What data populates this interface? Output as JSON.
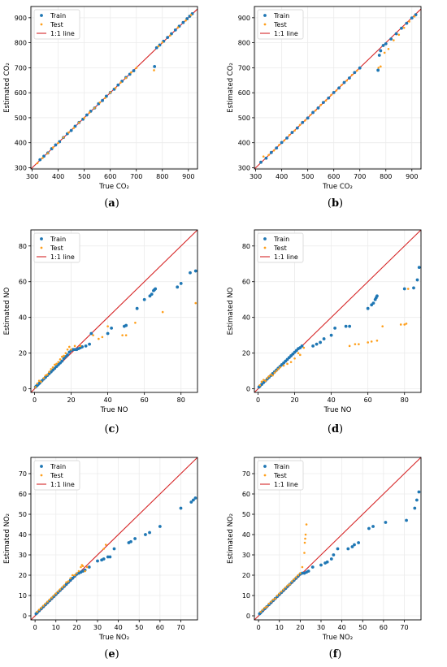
{
  "legend_labels": {
    "train": "Train",
    "test": "Test",
    "line": "1:1 line"
  },
  "colors": {
    "train": "#1f77b4",
    "test": "#ff9f1a",
    "line": "#d62728",
    "grid": "#ebebeb",
    "axis": "#000000"
  },
  "chart_data": [
    {
      "type": "scatter",
      "panel": "a",
      "xlabel": "True CO₂",
      "ylabel": "Estimated CO₂",
      "xlim": [
        295,
        935
      ],
      "ylim": [
        295,
        945
      ],
      "xticks": [
        300,
        400,
        500,
        600,
        700,
        800,
        900
      ],
      "yticks": [
        300,
        400,
        500,
        600,
        700,
        800,
        900
      ],
      "grid": true,
      "legend": "top-left",
      "series": [
        {
          "name": "Train",
          "x": [
            330,
            345,
            360,
            375,
            390,
            405,
            420,
            435,
            450,
            465,
            480,
            495,
            510,
            525,
            540,
            555,
            570,
            585,
            600,
            615,
            630,
            645,
            660,
            675,
            690,
            770,
            778,
            790,
            805,
            820,
            835,
            850,
            865,
            880,
            895,
            905,
            915
          ],
          "y": [
            332,
            346,
            359,
            376,
            391,
            404,
            421,
            436,
            449,
            466,
            481,
            494,
            511,
            526,
            539,
            556,
            569,
            586,
            601,
            614,
            631,
            646,
            661,
            674,
            688,
            705,
            780,
            791,
            806,
            821,
            836,
            851,
            866,
            881,
            896,
            906,
            916
          ]
        },
        {
          "name": "Test",
          "x": [
            320,
            340,
            360,
            380,
            400,
            420,
            440,
            460,
            480,
            500,
            520,
            540,
            560,
            580,
            600,
            620,
            640,
            660,
            680,
            700,
            768,
            785,
            800,
            830,
            860,
            890,
            910
          ],
          "y": [
            318,
            339,
            358,
            381,
            399,
            421,
            441,
            459,
            481,
            499,
            521,
            539,
            561,
            579,
            601,
            619,
            641,
            659,
            681,
            699,
            690,
            786,
            801,
            829,
            861,
            889,
            911
          ]
        }
      ]
    },
    {
      "type": "scatter",
      "panel": "b",
      "xlabel": "True CO₂",
      "ylabel": "Estimated CO₂",
      "xlim": [
        295,
        935
      ],
      "ylim": [
        295,
        945
      ],
      "xticks": [
        300,
        400,
        500,
        600,
        700,
        800,
        900
      ],
      "yticks": [
        300,
        400,
        500,
        600,
        700,
        800,
        900
      ],
      "grid": true,
      "legend": "top-left",
      "series": [
        {
          "name": "Train",
          "x": [
            320,
            340,
            360,
            380,
            400,
            420,
            440,
            460,
            480,
            500,
            520,
            540,
            560,
            580,
            600,
            620,
            640,
            660,
            680,
            700,
            770,
            775,
            780,
            790,
            800,
            820,
            840,
            860,
            880,
            900,
            915
          ],
          "y": [
            322,
            338,
            361,
            379,
            401,
            419,
            441,
            459,
            481,
            499,
            521,
            539,
            561,
            579,
            601,
            619,
            641,
            659,
            681,
            699,
            690,
            750,
            768,
            789,
            796,
            815,
            836,
            858,
            878,
            899,
            912
          ]
        },
        {
          "name": "Test",
          "x": [
            330,
            350,
            370,
            390,
            410,
            430,
            450,
            470,
            490,
            510,
            530,
            550,
            570,
            590,
            610,
            630,
            650,
            670,
            690,
            772,
            780,
            795,
            810,
            830,
            850,
            870,
            890,
            910
          ],
          "y": [
            345,
            351,
            369,
            391,
            409,
            431,
            449,
            471,
            489,
            511,
            529,
            551,
            569,
            591,
            609,
            631,
            649,
            671,
            689,
            700,
            705,
            760,
            775,
            810,
            832,
            860,
            885,
            905
          ]
        }
      ]
    },
    {
      "type": "scatter",
      "panel": "c",
      "xlabel": "True NO",
      "ylabel": "Estimated NO",
      "xlim": [
        -2,
        89
      ],
      "ylim": [
        -2,
        89
      ],
      "xticks": [
        0,
        20,
        40,
        60,
        80
      ],
      "yticks": [
        0,
        20,
        40,
        60,
        80
      ],
      "grid": true,
      "legend": "top-left",
      "series": [
        {
          "name": "Train",
          "x": [
            0.5,
            1,
            1.5,
            2,
            2.5,
            3,
            4,
            5,
            6,
            7,
            8,
            9,
            10,
            11,
            12,
            13,
            14,
            15,
            16,
            17,
            18,
            19,
            20,
            21,
            22,
            23,
            24,
            25,
            26,
            28,
            30,
            31,
            40,
            42,
            49,
            50,
            56,
            60,
            63,
            64,
            65,
            65.5,
            66,
            78,
            80,
            85,
            88
          ],
          "y": [
            1,
            1.5,
            2,
            2.5,
            3,
            3.5,
            4.5,
            5.5,
            6.5,
            7.5,
            8.5,
            9.5,
            10.5,
            11.5,
            12.5,
            13.5,
            14.5,
            15.5,
            17,
            18,
            19,
            20.5,
            21.5,
            22,
            22,
            22,
            22.5,
            23,
            23.5,
            24,
            25,
            31,
            31,
            34,
            35,
            35.5,
            45,
            50,
            52,
            53,
            55,
            55.5,
            56,
            57,
            59,
            65,
            66
          ]
        },
        {
          "name": "Test",
          "x": [
            0.5,
            1.5,
            2.5,
            3.5,
            5,
            6,
            7,
            8,
            9,
            10,
            11,
            12,
            13,
            14,
            15,
            16,
            17,
            18,
            19,
            20,
            22,
            25,
            32,
            35,
            37,
            40,
            48,
            50,
            55,
            70,
            88
          ],
          "y": [
            1,
            3,
            4.5,
            4,
            6,
            7.5,
            8,
            9.5,
            11,
            12,
            13.5,
            14,
            15,
            16.5,
            18,
            18.5,
            20,
            22,
            23.5,
            22,
            24,
            24,
            30,
            28,
            29,
            35,
            30,
            30,
            37,
            43,
            48
          ]
        }
      ]
    },
    {
      "type": "scatter",
      "panel": "d",
      "xlabel": "True NO",
      "ylabel": "Estimated NO",
      "xlim": [
        -2,
        89
      ],
      "ylim": [
        -2,
        89
      ],
      "xticks": [
        0,
        20,
        40,
        60,
        80
      ],
      "yticks": [
        0,
        20,
        40,
        60,
        80
      ],
      "grid": true,
      "legend": "top-left",
      "series": [
        {
          "name": "Train",
          "x": [
            0.5,
            1,
            2,
            3,
            4,
            5,
            6,
            7,
            8,
            9,
            10,
            11,
            12,
            13,
            14,
            15,
            16,
            17,
            18,
            19,
            20,
            21,
            22,
            23,
            24,
            30,
            32,
            34,
            36,
            40,
            42,
            48,
            50,
            60,
            62,
            63,
            64,
            64.5,
            65,
            80,
            85,
            87,
            88
          ],
          "y": [
            1,
            1.5,
            2.5,
            3.5,
            4.5,
            5.5,
            6.5,
            7.5,
            8.5,
            9.5,
            10.5,
            11.5,
            12.5,
            13.5,
            14.5,
            15.5,
            16.5,
            17.5,
            18.5,
            19.5,
            20.5,
            21.5,
            22.5,
            23,
            24,
            24,
            25,
            26,
            28,
            30,
            34,
            35,
            35,
            45,
            47,
            48,
            50,
            51,
            52,
            56,
            56.5,
            61,
            68
          ]
        },
        {
          "name": "Test",
          "x": [
            1,
            2,
            3,
            4,
            5,
            6,
            7,
            8,
            9,
            10,
            11,
            12,
            14,
            16,
            18,
            20,
            22,
            23,
            25,
            50,
            53,
            55,
            60,
            62,
            65,
            68,
            78,
            80,
            81,
            82
          ],
          "y": [
            2,
            4,
            5,
            4.5,
            6,
            7,
            8,
            7.5,
            9,
            10,
            11,
            12,
            13,
            14,
            15,
            17,
            20,
            19,
            23,
            24,
            25,
            25,
            26,
            26.5,
            27,
            35,
            36,
            36,
            36.5,
            56
          ]
        }
      ]
    },
    {
      "type": "scatter",
      "panel": "e",
      "xlabel": "True NO₂",
      "ylabel": "Estimated NO₂",
      "xlim": [
        -2,
        78
      ],
      "ylim": [
        -2,
        78
      ],
      "xticks": [
        0,
        10,
        20,
        30,
        40,
        50,
        60,
        70
      ],
      "yticks": [
        0,
        10,
        20,
        30,
        40,
        50,
        60,
        70
      ],
      "grid": true,
      "legend": "top-left",
      "series": [
        {
          "name": "Train",
          "x": [
            0.5,
            1,
            2,
            3,
            4,
            5,
            6,
            7,
            8,
            9,
            10,
            11,
            12,
            13,
            14,
            15,
            16,
            17,
            18,
            19,
            20,
            21,
            22,
            23,
            24,
            26,
            30,
            32,
            33,
            35,
            36,
            38,
            45,
            46,
            48,
            53,
            55,
            60,
            70,
            75,
            76,
            77
          ],
          "y": [
            1,
            1.5,
            2.5,
            3.5,
            4.5,
            5.5,
            6.5,
            7.5,
            8.5,
            9.5,
            10.5,
            11.5,
            12.5,
            13.5,
            14.5,
            15.5,
            16.5,
            17.5,
            18.5,
            19.5,
            20.5,
            21,
            21.5,
            22,
            22.5,
            24,
            27,
            27.5,
            28,
            29,
            29,
            33,
            36,
            36.5,
            38,
            40,
            41,
            44,
            53,
            56,
            57,
            58
          ]
        },
        {
          "name": "Test",
          "x": [
            1,
            2,
            3,
            4,
            5,
            6,
            7,
            8,
            9,
            10,
            11,
            12,
            13,
            14,
            15,
            16,
            17,
            18,
            19,
            20,
            21,
            22,
            22.5,
            23,
            24,
            25,
            33,
            34
          ],
          "y": [
            2,
            3,
            4,
            5,
            6,
            7,
            8,
            9,
            10,
            11,
            12,
            13,
            14,
            15,
            16.5,
            17,
            18.5,
            20,
            20,
            21,
            22,
            24,
            25,
            24.5,
            22,
            24,
            33,
            35
          ]
        }
      ]
    },
    {
      "type": "scatter",
      "panel": "f",
      "xlabel": "True NO₂",
      "ylabel": "Estimated NO₂",
      "xlim": [
        -2,
        78
      ],
      "ylim": [
        -2,
        78
      ],
      "xticks": [
        0,
        10,
        20,
        30,
        40,
        50,
        60,
        70
      ],
      "yticks": [
        0,
        10,
        20,
        30,
        40,
        50,
        60,
        70
      ],
      "grid": true,
      "legend": "top-left",
      "series": [
        {
          "name": "Train",
          "x": [
            0.5,
            1,
            2,
            3,
            4,
            5,
            6,
            7,
            8,
            9,
            10,
            11,
            12,
            13,
            14,
            15,
            16,
            17,
            18,
            19,
            20,
            21,
            22,
            23,
            24,
            26,
            30,
            32,
            33,
            35,
            36,
            38,
            43,
            45,
            46,
            48,
            53,
            55,
            61,
            71,
            75,
            76,
            77
          ],
          "y": [
            1,
            1.5,
            2.5,
            3.5,
            4.5,
            5.5,
            6.5,
            7.5,
            8.5,
            9.5,
            10.5,
            11.5,
            12.5,
            13.5,
            14.5,
            15.5,
            16.5,
            17.5,
            18.5,
            19.5,
            20.5,
            21,
            21,
            21.5,
            22,
            24,
            25,
            26,
            26.5,
            28,
            30,
            33,
            33,
            34,
            35,
            36,
            43,
            44,
            46,
            47,
            53,
            57,
            61
          ]
        },
        {
          "name": "Test",
          "x": [
            1,
            2,
            3,
            4,
            5,
            6,
            7,
            8,
            9,
            10,
            11,
            12,
            13,
            14,
            15,
            16,
            17,
            18,
            19,
            20,
            21,
            22,
            22.2,
            22.4,
            22.6,
            23
          ],
          "y": [
            2,
            3,
            4,
            4.5,
            6,
            7,
            8,
            8.5,
            10,
            11,
            12,
            13,
            14,
            15,
            15.5,
            17,
            18,
            19,
            20,
            21,
            24,
            31,
            36,
            38,
            40,
            45
          ]
        }
      ]
    }
  ],
  "panel_labels": [
    "(a)",
    "(b)",
    "(c)",
    "(d)",
    "(e)",
    "(f)"
  ]
}
